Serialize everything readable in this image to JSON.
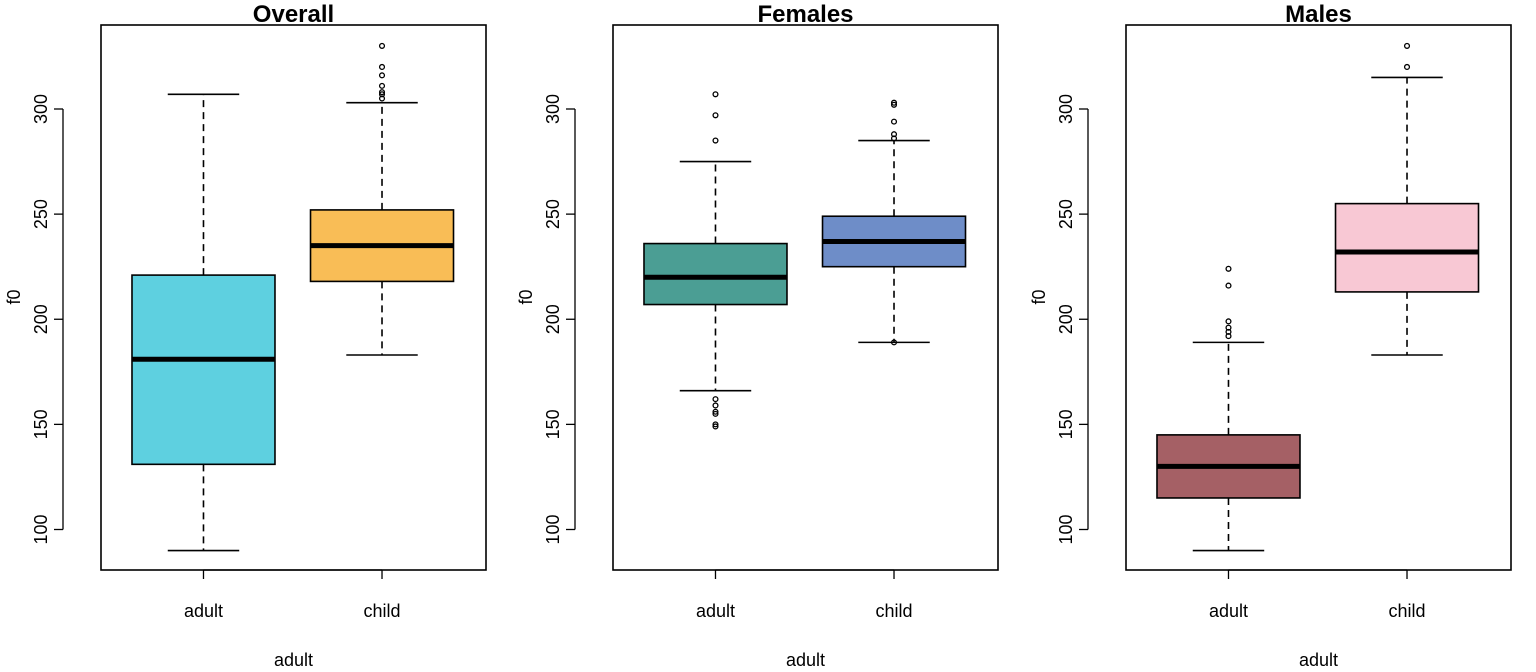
{
  "chart_data": [
    {
      "type": "box",
      "title": "Overall",
      "xlabel": "adult",
      "ylabel": "f0",
      "ylim": [
        80,
        338
      ],
      "yticks": [
        100,
        150,
        200,
        250,
        300
      ],
      "categories": [
        "adult",
        "child"
      ],
      "boxes": [
        {
          "category": "adult",
          "color": "#5ED0E0",
          "lower_whisker": 90,
          "q1": 131,
          "median": 181,
          "q3": 221,
          "upper_whisker": 307,
          "outliers": []
        },
        {
          "category": "child",
          "color": "#F9BD56",
          "lower_whisker": 183,
          "q1": 218,
          "median": 235,
          "q3": 252,
          "upper_whisker": 303,
          "outliers": [
            305,
            307,
            308,
            311,
            316,
            320,
            330
          ]
        }
      ]
    },
    {
      "type": "box",
      "title": "Females",
      "xlabel": "adult",
      "ylabel": "f0",
      "ylim": [
        80,
        338
      ],
      "yticks": [
        100,
        150,
        200,
        250,
        300
      ],
      "categories": [
        "adult",
        "child"
      ],
      "boxes": [
        {
          "category": "adult",
          "color": "#4B9E94",
          "lower_whisker": 166,
          "q1": 207,
          "median": 220,
          "q3": 236,
          "upper_whisker": 275,
          "outliers": [
            149,
            150,
            155,
            156,
            159,
            162,
            285,
            297,
            307
          ]
        },
        {
          "category": "child",
          "color": "#6E8DC8",
          "lower_whisker": 189,
          "q1": 225,
          "median": 237,
          "q3": 249,
          "upper_whisker": 285,
          "outliers": [
            189,
            286,
            288,
            294,
            302,
            303
          ]
        }
      ]
    },
    {
      "type": "box",
      "title": "Males",
      "xlabel": "adult",
      "ylabel": "f0",
      "ylim": [
        80,
        338
      ],
      "yticks": [
        100,
        150,
        200,
        250,
        300
      ],
      "categories": [
        "adult",
        "child"
      ],
      "boxes": [
        {
          "category": "adult",
          "color": "#A56065",
          "lower_whisker": 90,
          "q1": 115,
          "median": 130,
          "q3": 145,
          "upper_whisker": 189,
          "outliers": [
            192,
            194,
            196,
            199,
            216,
            224
          ]
        },
        {
          "category": "child",
          "color": "#F8C8D4",
          "lower_whisker": 183,
          "q1": 213,
          "median": 232,
          "q3": 255,
          "upper_whisker": 315,
          "outliers": [
            320,
            330
          ]
        }
      ]
    }
  ]
}
